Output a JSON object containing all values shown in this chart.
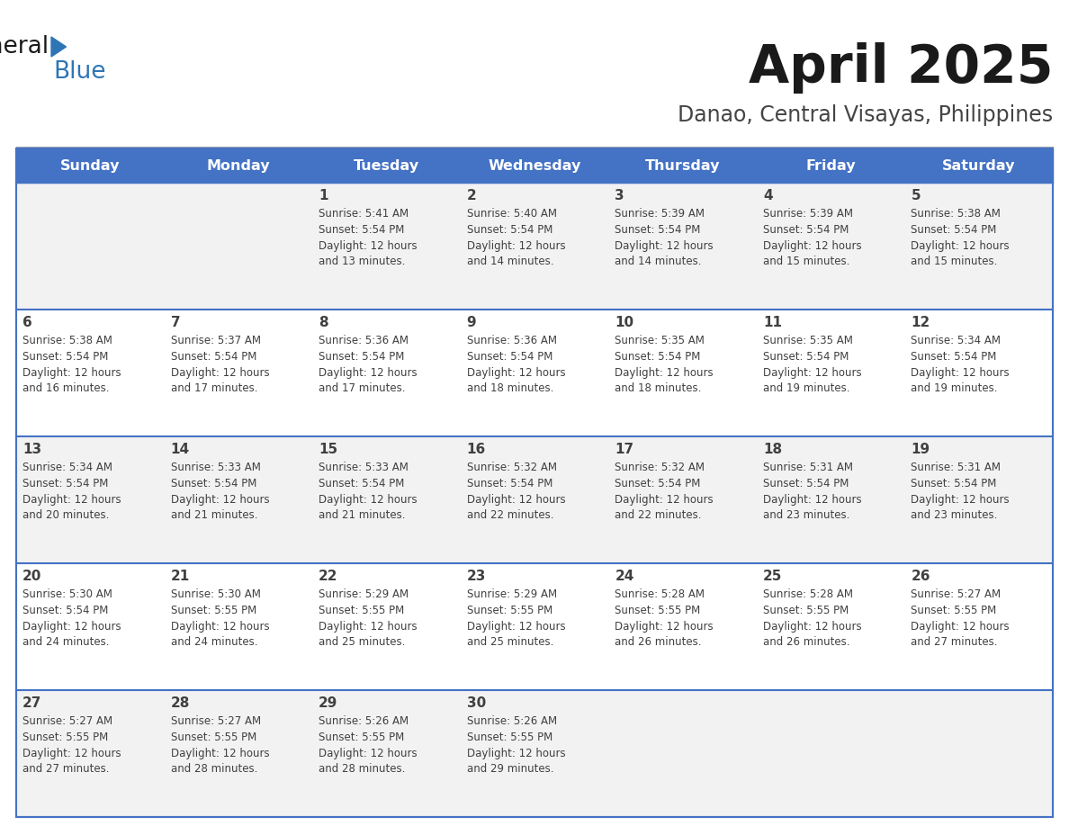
{
  "title": "April 2025",
  "subtitle": "Danao, Central Visayas, Philippines",
  "days_of_week": [
    "Sunday",
    "Monday",
    "Tuesday",
    "Wednesday",
    "Thursday",
    "Friday",
    "Saturday"
  ],
  "header_bg": "#4472C4",
  "header_text_color": "#FFFFFF",
  "cell_bg_odd": "#F2F2F2",
  "cell_bg_even": "#FFFFFF",
  "cell_text_color": "#404040",
  "title_color": "#1a1a1a",
  "subtitle_color": "#444444",
  "divider_color": "#4472C4",
  "logo_general_color": "#1a1a1a",
  "logo_blue_color": "#2E75B6",
  "logo_triangle_color": "#2E75B6",
  "calendar_data": [
    {
      "day": 1,
      "col": 2,
      "row": 0,
      "sunrise": "5:41 AM",
      "sunset": "5:54 PM",
      "daylight_min": "13"
    },
    {
      "day": 2,
      "col": 3,
      "row": 0,
      "sunrise": "5:40 AM",
      "sunset": "5:54 PM",
      "daylight_min": "14"
    },
    {
      "day": 3,
      "col": 4,
      "row": 0,
      "sunrise": "5:39 AM",
      "sunset": "5:54 PM",
      "daylight_min": "14"
    },
    {
      "day": 4,
      "col": 5,
      "row": 0,
      "sunrise": "5:39 AM",
      "sunset": "5:54 PM",
      "daylight_min": "15"
    },
    {
      "day": 5,
      "col": 6,
      "row": 0,
      "sunrise": "5:38 AM",
      "sunset": "5:54 PM",
      "daylight_min": "15"
    },
    {
      "day": 6,
      "col": 0,
      "row": 1,
      "sunrise": "5:38 AM",
      "sunset": "5:54 PM",
      "daylight_min": "16"
    },
    {
      "day": 7,
      "col": 1,
      "row": 1,
      "sunrise": "5:37 AM",
      "sunset": "5:54 PM",
      "daylight_min": "17"
    },
    {
      "day": 8,
      "col": 2,
      "row": 1,
      "sunrise": "5:36 AM",
      "sunset": "5:54 PM",
      "daylight_min": "17"
    },
    {
      "day": 9,
      "col": 3,
      "row": 1,
      "sunrise": "5:36 AM",
      "sunset": "5:54 PM",
      "daylight_min": "18"
    },
    {
      "day": 10,
      "col": 4,
      "row": 1,
      "sunrise": "5:35 AM",
      "sunset": "5:54 PM",
      "daylight_min": "18"
    },
    {
      "day": 11,
      "col": 5,
      "row": 1,
      "sunrise": "5:35 AM",
      "sunset": "5:54 PM",
      "daylight_min": "19"
    },
    {
      "day": 12,
      "col": 6,
      "row": 1,
      "sunrise": "5:34 AM",
      "sunset": "5:54 PM",
      "daylight_min": "19"
    },
    {
      "day": 13,
      "col": 0,
      "row": 2,
      "sunrise": "5:34 AM",
      "sunset": "5:54 PM",
      "daylight_min": "20"
    },
    {
      "day": 14,
      "col": 1,
      "row": 2,
      "sunrise": "5:33 AM",
      "sunset": "5:54 PM",
      "daylight_min": "21"
    },
    {
      "day": 15,
      "col": 2,
      "row": 2,
      "sunrise": "5:33 AM",
      "sunset": "5:54 PM",
      "daylight_min": "21"
    },
    {
      "day": 16,
      "col": 3,
      "row": 2,
      "sunrise": "5:32 AM",
      "sunset": "5:54 PM",
      "daylight_min": "22"
    },
    {
      "day": 17,
      "col": 4,
      "row": 2,
      "sunrise": "5:32 AM",
      "sunset": "5:54 PM",
      "daylight_min": "22"
    },
    {
      "day": 18,
      "col": 5,
      "row": 2,
      "sunrise": "5:31 AM",
      "sunset": "5:54 PM",
      "daylight_min": "23"
    },
    {
      "day": 19,
      "col": 6,
      "row": 2,
      "sunrise": "5:31 AM",
      "sunset": "5:54 PM",
      "daylight_min": "23"
    },
    {
      "day": 20,
      "col": 0,
      "row": 3,
      "sunrise": "5:30 AM",
      "sunset": "5:54 PM",
      "daylight_min": "24"
    },
    {
      "day": 21,
      "col": 1,
      "row": 3,
      "sunrise": "5:30 AM",
      "sunset": "5:55 PM",
      "daylight_min": "24"
    },
    {
      "day": 22,
      "col": 2,
      "row": 3,
      "sunrise": "5:29 AM",
      "sunset": "5:55 PM",
      "daylight_min": "25"
    },
    {
      "day": 23,
      "col": 3,
      "row": 3,
      "sunrise": "5:29 AM",
      "sunset": "5:55 PM",
      "daylight_min": "25"
    },
    {
      "day": 24,
      "col": 4,
      "row": 3,
      "sunrise": "5:28 AM",
      "sunset": "5:55 PM",
      "daylight_min": "26"
    },
    {
      "day": 25,
      "col": 5,
      "row": 3,
      "sunrise": "5:28 AM",
      "sunset": "5:55 PM",
      "daylight_min": "26"
    },
    {
      "day": 26,
      "col": 6,
      "row": 3,
      "sunrise": "5:27 AM",
      "sunset": "5:55 PM",
      "daylight_min": "27"
    },
    {
      "day": 27,
      "col": 0,
      "row": 4,
      "sunrise": "5:27 AM",
      "sunset": "5:55 PM",
      "daylight_min": "27"
    },
    {
      "day": 28,
      "col": 1,
      "row": 4,
      "sunrise": "5:27 AM",
      "sunset": "5:55 PM",
      "daylight_min": "28"
    },
    {
      "day": 29,
      "col": 2,
      "row": 4,
      "sunrise": "5:26 AM",
      "sunset": "5:55 PM",
      "daylight_min": "28"
    },
    {
      "day": 30,
      "col": 3,
      "row": 4,
      "sunrise": "5:26 AM",
      "sunset": "5:55 PM",
      "daylight_min": "29"
    }
  ]
}
